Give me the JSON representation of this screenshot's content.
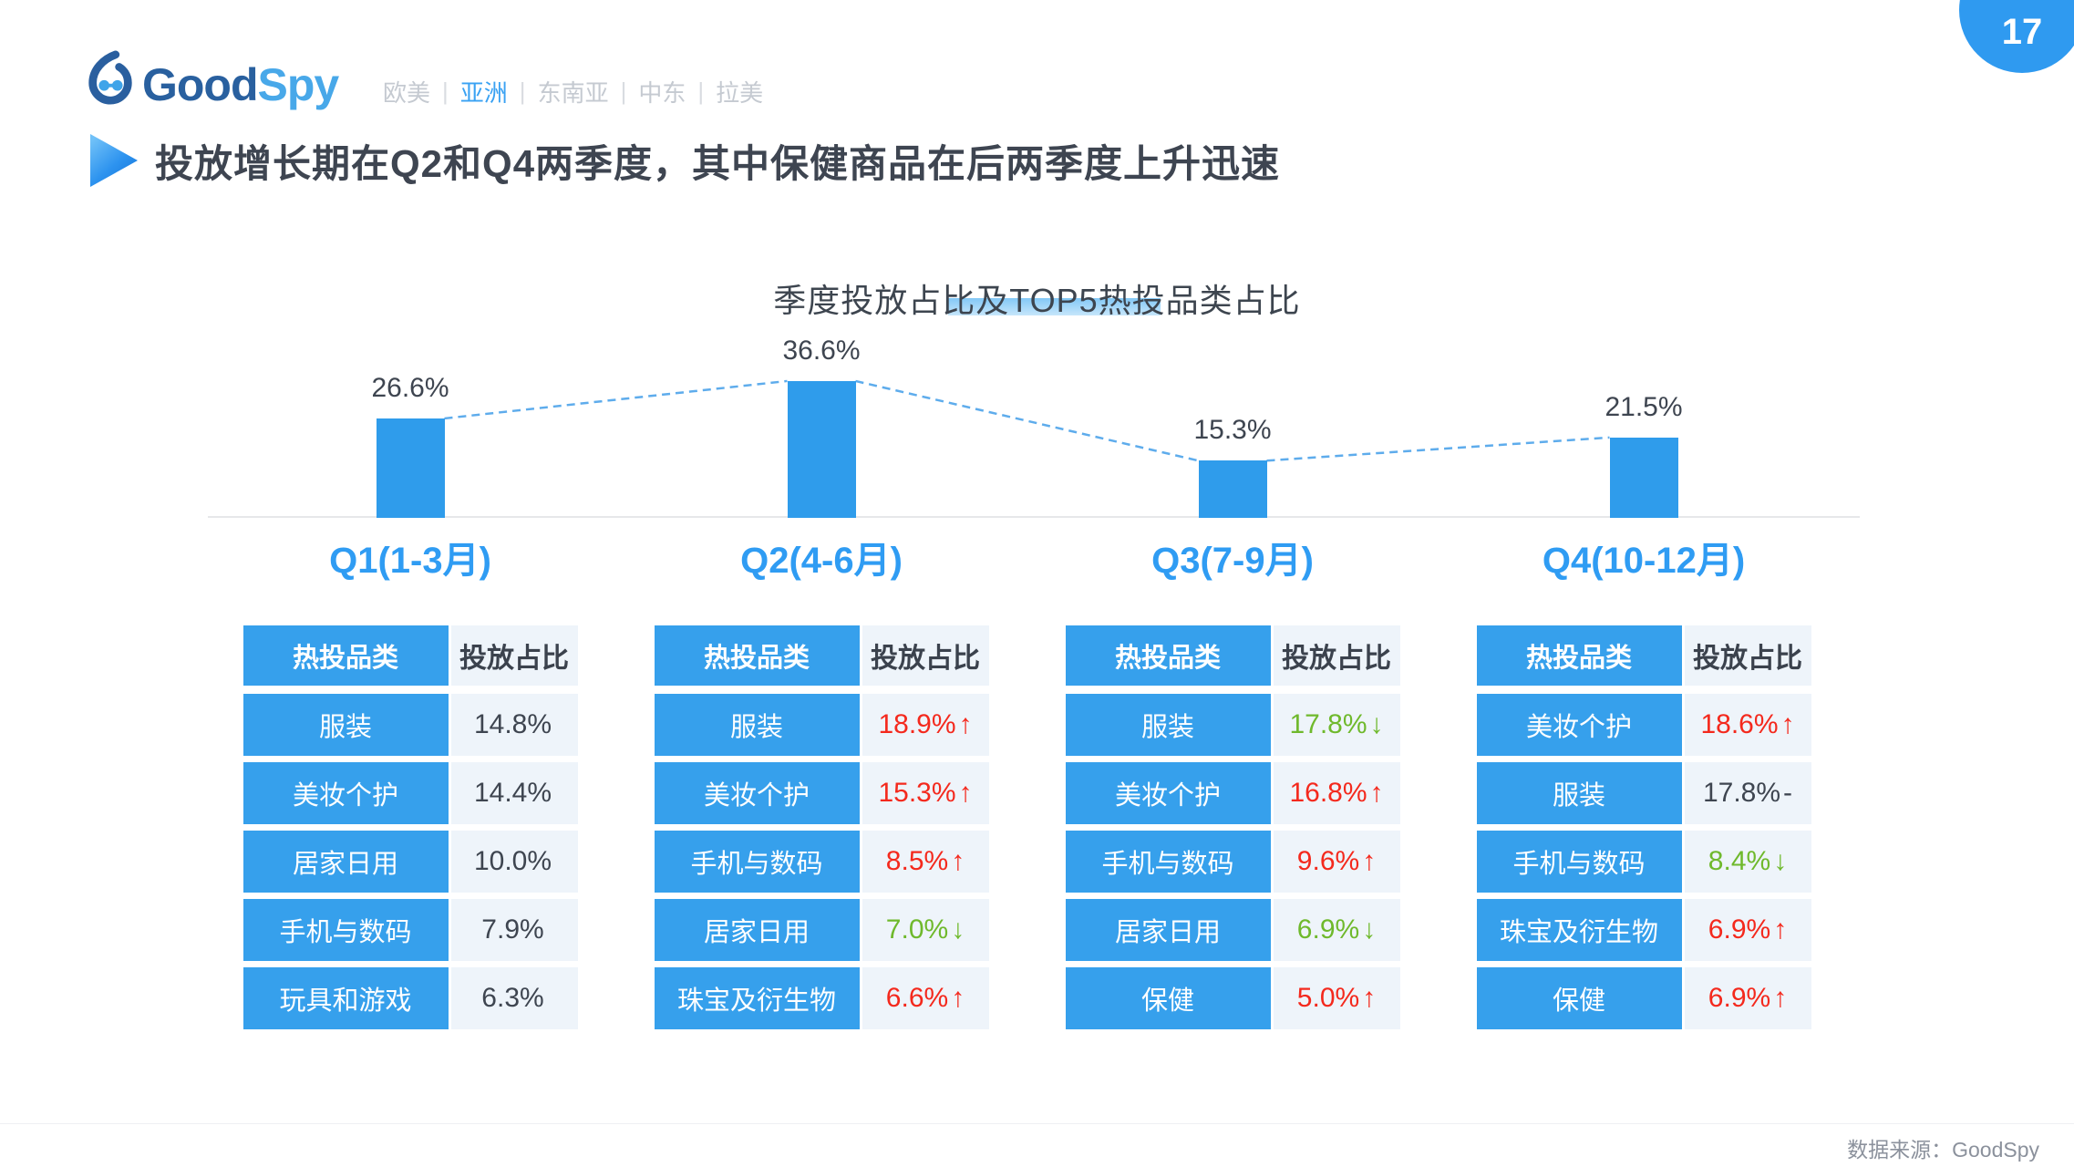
{
  "page": {
    "number": "17"
  },
  "header": {
    "logo": {
      "text_primary": "Good",
      "text_secondary": "Spy"
    },
    "nav": {
      "separator": "|",
      "items": [
        {
          "label": "欧美",
          "active": false
        },
        {
          "label": "亚洲",
          "active": true
        },
        {
          "label": "东南亚",
          "active": false
        },
        {
          "label": "中东",
          "active": false
        },
        {
          "label": "拉美",
          "active": false
        }
      ]
    }
  },
  "title": {
    "text": "投放增长期在Q2和Q4两季度，其中保健商品在后两季度上升迅速"
  },
  "chart_data": {
    "type": "bar",
    "title": "季度投放占比及TOP5热投品类占比",
    "categories": [
      "Q1(1-3月)",
      "Q2(4-6月)",
      "Q3(7-9月)",
      "Q4(10-12月)"
    ],
    "values": [
      26.6,
      36.6,
      15.3,
      21.5
    ],
    "labels": [
      "26.6%",
      "36.6%",
      "15.3%",
      "21.5%"
    ],
    "unit": "%",
    "ylim": [
      0,
      40
    ],
    "grid": false,
    "connector_line": "dashed between bar tops",
    "bar_color": "#2f9ceb",
    "table_header": {
      "category": "热投品类",
      "share": "投放占比"
    },
    "top5": [
      {
        "rows": [
          {
            "category": "服装",
            "value": "14.8%",
            "arrow": "",
            "trend": "none"
          },
          {
            "category": "美妆个护",
            "value": "14.4%",
            "arrow": "",
            "trend": "none"
          },
          {
            "category": "居家日用",
            "value": "10.0%",
            "arrow": "",
            "trend": "none"
          },
          {
            "category": "手机与数码",
            "value": "7.9%",
            "arrow": "",
            "trend": "none"
          },
          {
            "category": "玩具和游戏",
            "value": "6.3%",
            "arrow": "",
            "trend": "none"
          }
        ]
      },
      {
        "rows": [
          {
            "category": "服装",
            "value": "18.9%",
            "arrow": "↑",
            "trend": "up"
          },
          {
            "category": "美妆个护",
            "value": "15.3%",
            "arrow": "↑",
            "trend": "up"
          },
          {
            "category": "手机与数码",
            "value": "8.5%",
            "arrow": "↑",
            "trend": "up"
          },
          {
            "category": "居家日用",
            "value": "7.0%",
            "arrow": "↓",
            "trend": "down"
          },
          {
            "category": "珠宝及衍生物",
            "value": "6.6%",
            "arrow": "↑",
            "trend": "up"
          }
        ]
      },
      {
        "rows": [
          {
            "category": "服装",
            "value": "17.8%",
            "arrow": "↓",
            "trend": "down"
          },
          {
            "category": "美妆个护",
            "value": "16.8%",
            "arrow": "↑",
            "trend": "up"
          },
          {
            "category": "手机与数码",
            "value": "9.6%",
            "arrow": "↑",
            "trend": "up"
          },
          {
            "category": "居家日用",
            "value": "6.9%",
            "arrow": "↓",
            "trend": "down"
          },
          {
            "category": "保健",
            "value": "5.0%",
            "arrow": "↑",
            "trend": "up"
          }
        ]
      },
      {
        "rows": [
          {
            "category": "美妆个护",
            "value": "18.6%",
            "arrow": "↑",
            "trend": "up"
          },
          {
            "category": "服装",
            "value": "17.8%",
            "arrow": "-",
            "trend": "flat"
          },
          {
            "category": "手机与数码",
            "value": "8.4%",
            "arrow": "↓",
            "trend": "down"
          },
          {
            "category": "珠宝及衍生物",
            "value": "6.9%",
            "arrow": "↑",
            "trend": "up"
          },
          {
            "category": "保健",
            "value": "6.9%",
            "arrow": "↑",
            "trend": "up"
          }
        ]
      }
    ]
  },
  "footer": {
    "source": "数据来源：GoodSpy"
  },
  "colors": {
    "primary_blue": "#2f9cf0",
    "bar_blue": "#2f9ceb",
    "table_blue": "#36a0ec",
    "up_red": "#f4291d",
    "down_green": "#6fb92c",
    "dark_text": "#3e4550"
  }
}
